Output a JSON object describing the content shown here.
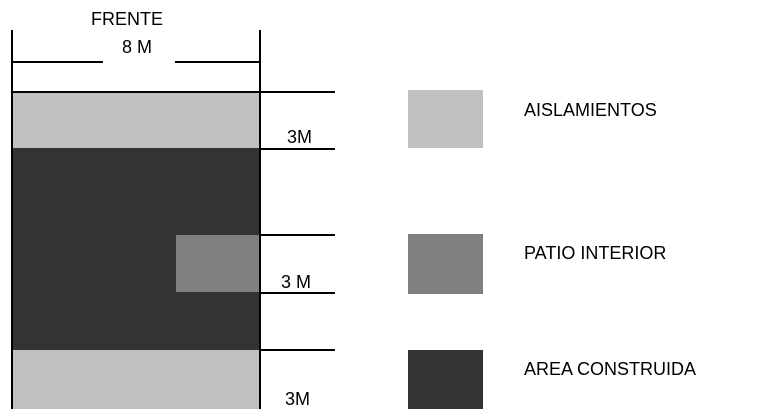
{
  "colors": {
    "aislamientos": "#c0c0c0",
    "patio_interior": "#808080",
    "area_construida": "#333333",
    "line": "#000000"
  },
  "plan": {
    "frente_label": "FRENTE",
    "width_label": "8 M",
    "dim_top": "3M",
    "dim_middle": "3 M",
    "dim_bottom": "3M"
  },
  "legend": [
    {
      "key": "aislamientos",
      "label": "AISLAMIENTOS",
      "color": "#c0c0c0"
    },
    {
      "key": "patio_interior",
      "label": "PATIO  INTERIOR",
      "color": "#808080"
    },
    {
      "key": "area_construida",
      "label": "AREA  CONSTRUIDA",
      "color": "#333333"
    }
  ]
}
